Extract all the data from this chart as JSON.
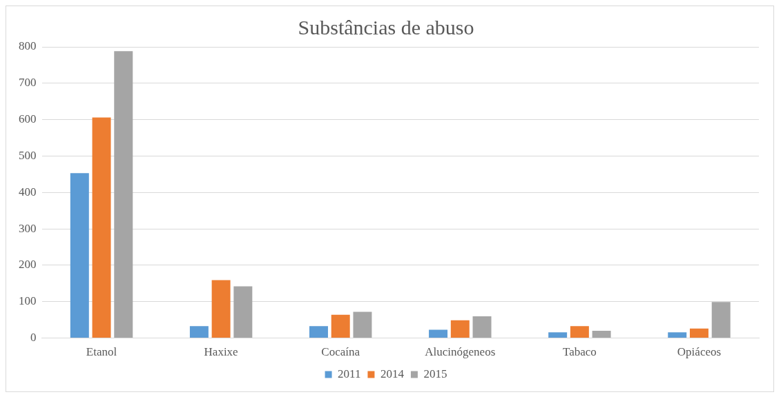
{
  "chart_data": {
    "type": "bar",
    "title": "Substâncias de abuso",
    "categories": [
      "Etanol",
      "Haxixe",
      "Cocaína",
      "Alucinógeneos",
      "Tabaco",
      "Opiáceos"
    ],
    "series": [
      {
        "name": "2011",
        "color": "#5b9bd5",
        "values": [
          453,
          33,
          33,
          23,
          16,
          16
        ]
      },
      {
        "name": "2014",
        "color": "#ed7d31",
        "values": [
          606,
          159,
          64,
          49,
          33,
          26
        ]
      },
      {
        "name": "2015",
        "color": "#a5a5a5",
        "values": [
          788,
          142,
          72,
          60,
          20,
          99
        ]
      }
    ],
    "ylim": [
      0,
      800
    ],
    "yticks": [
      0,
      100,
      200,
      300,
      400,
      500,
      600,
      700,
      800
    ],
    "grid": "y",
    "legend": "bottom"
  }
}
